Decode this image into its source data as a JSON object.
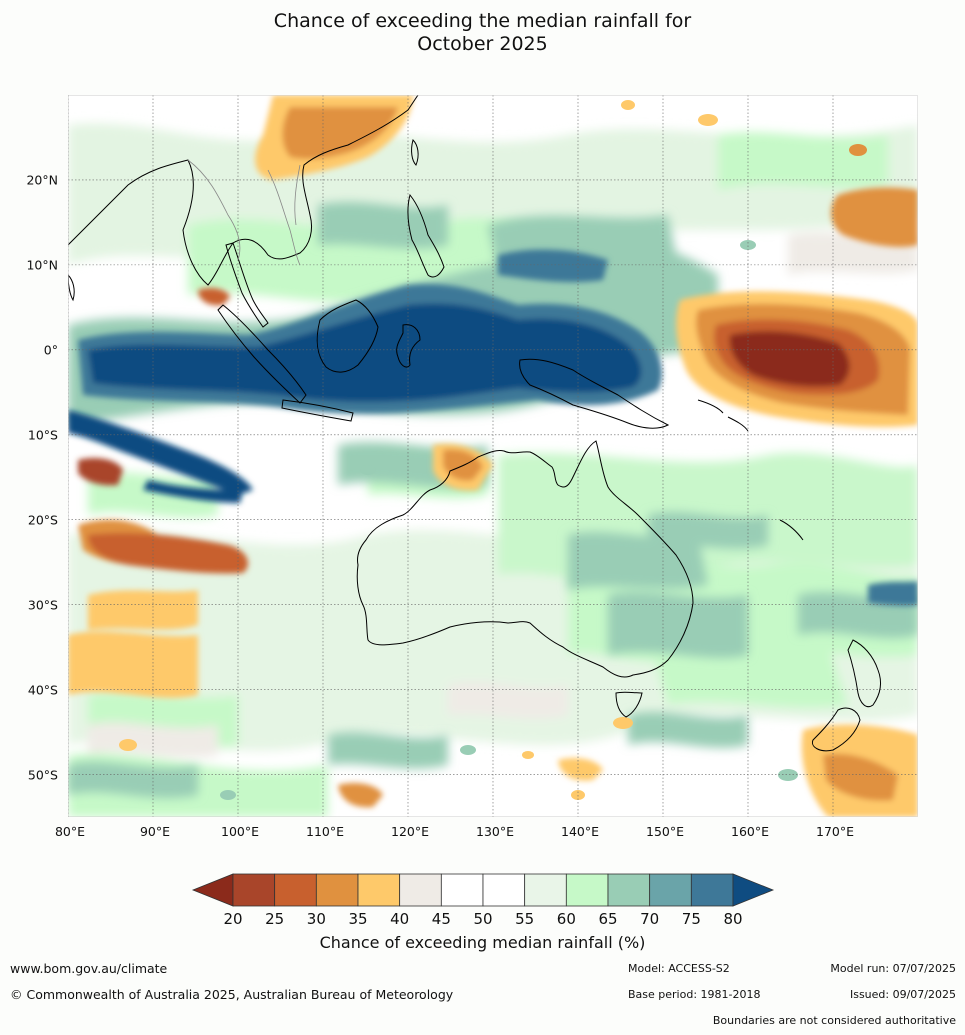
{
  "title_line1": "Chance of exceeding the median rainfall for",
  "title_line2": "October 2025",
  "map": {
    "lon_range": [
      80,
      180
    ],
    "lat_range": [
      -55,
      30
    ],
    "lat_labels": [
      "20°N",
      "10°N",
      "0°",
      "10°S",
      "20°S",
      "30°S",
      "40°S",
      "50°S"
    ],
    "lat_values": [
      20,
      10,
      0,
      -10,
      -20,
      -30,
      -40,
      -50
    ],
    "lon_labels": [
      "80°E",
      "90°E",
      "100°E",
      "110°E",
      "120°E",
      "130°E",
      "140°E",
      "150°E",
      "160°E",
      "170°E"
    ],
    "lon_values": [
      80,
      90,
      100,
      110,
      120,
      130,
      140,
      150,
      160,
      170
    ]
  },
  "colorbar": {
    "ticks": [
      "20",
      "25",
      "30",
      "35",
      "40",
      "45",
      "50",
      "55",
      "60",
      "65",
      "70",
      "75",
      "80"
    ],
    "under_color": "#8b2a1b",
    "over_color": "#0f4c81",
    "colors": [
      "#a9452a",
      "#c8602e",
      "#e0913f",
      "#fec96a",
      "#efebe6",
      "#ffffff",
      "#ffffff",
      "#e9f5e8",
      "#c6f9c8",
      "#99cdb5",
      "#6aa4a9",
      "#3e7898"
    ],
    "label": "Chance of exceeding median rainfall (%)"
  },
  "footer": {
    "url": "www.bom.gov.au/climate",
    "copyright": "© Commonwealth of Australia 2025, Australian Bureau of Meteorology",
    "model": "Model: ACCESS-S2",
    "base_period": "Base period: 1981-2018",
    "model_run": "Model run: 07/07/2025",
    "issued": "Issued: 09/07/2025",
    "disclaimer": "Boundaries are not considered authoritative"
  }
}
